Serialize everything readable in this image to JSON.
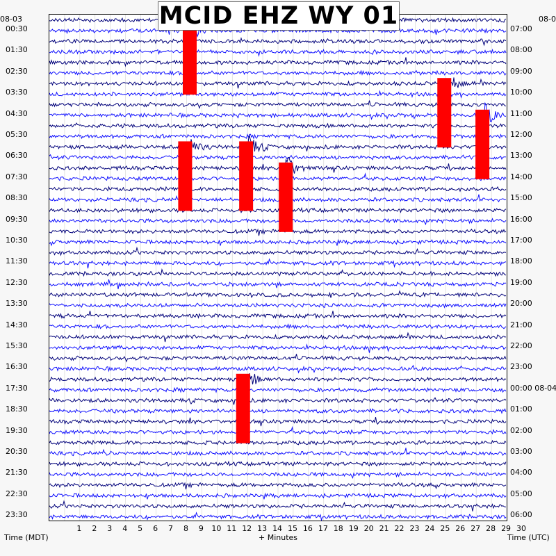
{
  "chart_data": {
    "type": "line",
    "title": "MCID EHZ WY 01",
    "start_date_left": "08-03",
    "start_date_right": "08-0",
    "date_change_label": "08-04",
    "xlabel": "+ Minutes",
    "left_axis_label": "Time (MDT)",
    "right_axis_label": "Time (UTC)",
    "x_range": [
      0,
      30
    ],
    "x_ticks": [
      "1",
      "2",
      "3",
      "4",
      "5",
      "6",
      "7",
      "8",
      "9",
      "10",
      "11",
      "12",
      "13",
      "14",
      "15",
      "16",
      "17",
      "18",
      "19",
      "20",
      "21",
      "22",
      "23",
      "24",
      "25",
      "26",
      "27",
      "28",
      "29",
      "30"
    ],
    "left_time_labels": [
      "00:30",
      "01:30",
      "02:30",
      "03:30",
      "04:30",
      "05:30",
      "06:30",
      "07:30",
      "08:30",
      "09:30",
      "10:30",
      "11:30",
      "12:30",
      "13:30",
      "14:30",
      "15:30",
      "16:30",
      "17:30",
      "18:30",
      "19:30",
      "20:30",
      "21:30",
      "22:30",
      "23:30"
    ],
    "right_time_labels": [
      "07:00",
      "08:00",
      "09:00",
      "10:00",
      "11:00",
      "12:00",
      "13:00",
      "14:00",
      "15:00",
      "16:00",
      "17:00",
      "18:00",
      "19:00",
      "20:00",
      "21:00",
      "22:00",
      "23:00",
      "00:00 08-04",
      "01:00",
      "02:00",
      "03:00",
      "04:00",
      "05:00",
      "06:00"
    ],
    "trace_count": 48,
    "trace_colors": [
      "#00007a",
      "#1010ff"
    ],
    "clip_color": "#ff0000",
    "events": [
      {
        "trace": 1,
        "minute": 9.3
      },
      {
        "trace": 12,
        "minute": 9.0
      },
      {
        "trace": 12,
        "minute": 13.0
      },
      {
        "trace": 14,
        "minute": 15.6
      },
      {
        "trace": 6,
        "minute": 26.0
      },
      {
        "trace": 9,
        "minute": 28.5
      },
      {
        "trace": 34,
        "minute": 12.8
      }
    ],
    "grid": true
  }
}
